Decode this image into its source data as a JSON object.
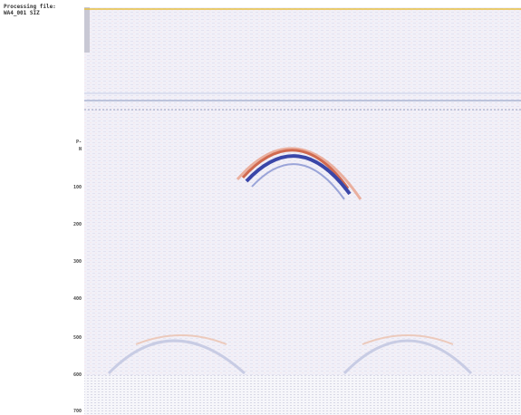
{
  "header": {
    "title": "Processing file:",
    "file": "WA4_001 SIZ"
  },
  "axis": {
    "marker_top": "P-",
    "marker_bottom": "N",
    "depth_labels": [
      "100",
      "200",
      "300",
      "400",
      "500",
      "600",
      "700"
    ]
  }
}
